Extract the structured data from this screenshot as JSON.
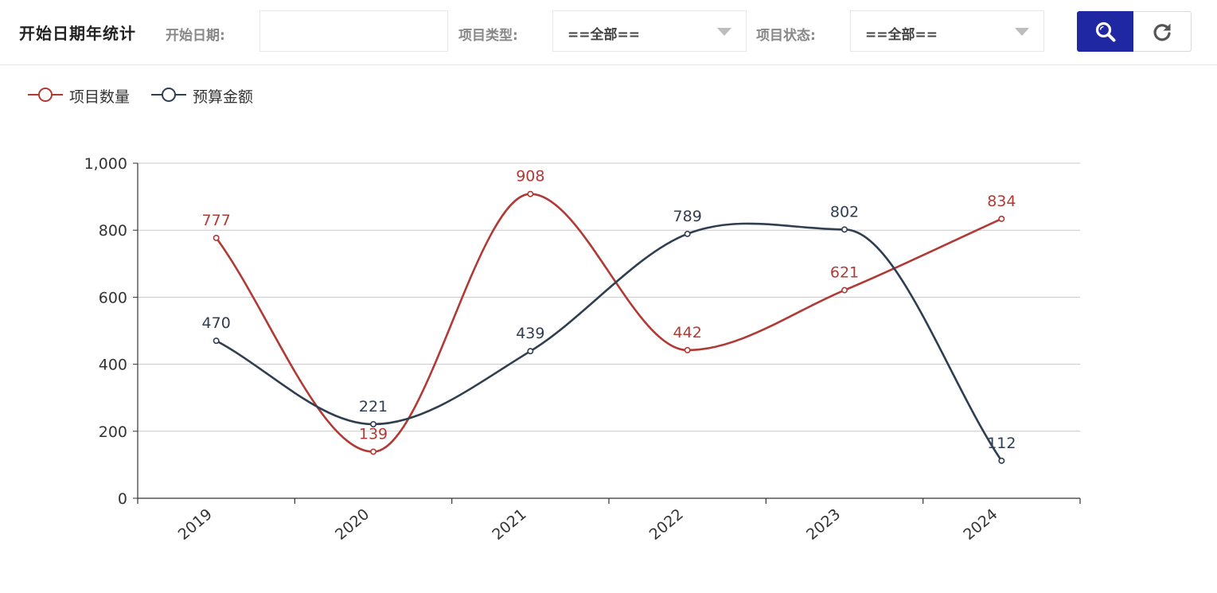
{
  "toolbar": {
    "title": "开始日期年统计",
    "start_date_label": "开始日期:",
    "start_date_value": "",
    "type_label": "项目类型:",
    "type_value": "==全部==",
    "status_label": "项目状态:",
    "status_value": "==全部==",
    "search_icon": "search-icon",
    "refresh_icon": "refresh-icon"
  },
  "colors": {
    "primary_button": "#1f27a3",
    "series_count": "#b03a35",
    "series_budget": "#2f3e50"
  },
  "chart_data": {
    "type": "line",
    "smooth": true,
    "categories": [
      "2019",
      "2020",
      "2021",
      "2022",
      "2023",
      "2024"
    ],
    "series": [
      {
        "name": "项目数量",
        "values": [
          777,
          139,
          908,
          442,
          621,
          834
        ]
      },
      {
        "name": "预算金额",
        "values": [
          470,
          221,
          439,
          789,
          802,
          112
        ]
      }
    ],
    "ylim": [
      0,
      1000
    ],
    "yticks": [
      "0",
      "200",
      "400",
      "600",
      "800",
      "1,000"
    ],
    "grid": true,
    "legend_position": "top-left",
    "show_data_labels": true
  }
}
